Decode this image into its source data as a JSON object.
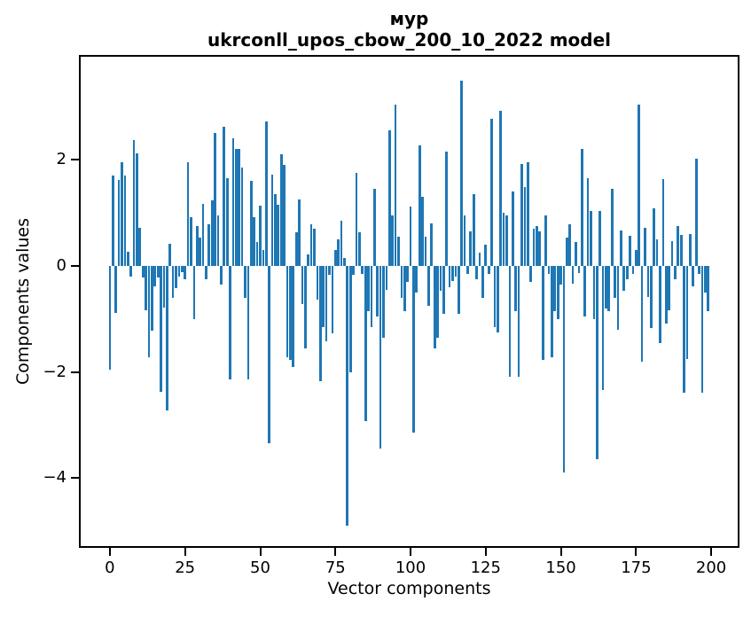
{
  "header": {
    "title_line1": "мур",
    "title_line2": "ukrconll_upos_cbow_200_10_2022 model"
  },
  "axes": {
    "xlabel": "Vector components",
    "ylabel": "Components values"
  },
  "chart_data": {
    "type": "bar",
    "title": "мур",
    "subtitle": "ukrconll_upos_cbow_200_10_2022 model",
    "xlabel": "Vector components",
    "ylabel": "Components values",
    "bar_color": "#1f77b4",
    "grid": false,
    "legend": null,
    "x_ticks": [
      0,
      25,
      50,
      75,
      100,
      125,
      150,
      175,
      200
    ],
    "y_ticks": [
      2,
      0,
      -2,
      -4
    ],
    "xlim": [
      -10.3,
      209.4
    ],
    "ylim": [
      -5.32,
      3.98
    ],
    "bar_data_width": 0.8,
    "n_bars": 200,
    "values": [
      -1.95,
      1.7,
      -0.88,
      1.62,
      1.95,
      1.7,
      0.26,
      -0.2,
      2.37,
      2.13,
      0.72,
      -0.22,
      -0.84,
      -1.73,
      -1.23,
      -0.39,
      -0.22,
      -2.37,
      -0.78,
      -2.73,
      0.42,
      -0.61,
      -0.42,
      -0.2,
      -0.11,
      -0.25,
      1.95,
      0.92,
      -1.0,
      0.75,
      0.53,
      1.17,
      -0.25,
      0.78,
      1.23,
      2.51,
      0.95,
      -0.35,
      2.62,
      1.65,
      -2.15,
      2.4,
      2.2,
      2.2,
      1.85,
      -0.6,
      -2.15,
      1.6,
      0.92,
      0.45,
      1.13,
      0.3,
      2.72,
      -3.35,
      1.72,
      1.35,
      1.15,
      2.1,
      1.9,
      -1.73,
      -1.78,
      -1.9,
      0.64,
      1.25,
      -0.72,
      -1.55,
      0.21,
      0.78,
      0.7,
      -0.64,
      -2.17,
      -1.15,
      -1.42,
      -0.17,
      -1.28,
      0.3,
      0.5,
      0.85,
      0.15,
      -4.9,
      -2.0,
      -0.17,
      1.75,
      0.63,
      -0.15,
      -2.93,
      -0.85,
      -1.15,
      1.45,
      -0.95,
      -3.45,
      -1.35,
      -0.45,
      2.55,
      0.95,
      3.05,
      0.55,
      -0.6,
      -0.85,
      -0.3,
      1.12,
      -3.15,
      -0.5,
      2.27,
      1.3,
      0.55,
      -0.75,
      0.8,
      -1.55,
      -1.35,
      -0.47,
      -0.9,
      2.15,
      -0.4,
      -0.28,
      -0.2,
      -0.9,
      3.5,
      0.95,
      -0.15,
      0.65,
      1.35,
      -0.25,
      0.25,
      -0.6,
      0.4,
      -0.15,
      2.78,
      -1.15,
      -1.25,
      2.93,
      1.0,
      0.96,
      -2.1,
      1.4,
      -0.85,
      -2.1,
      1.92,
      1.48,
      1.95,
      -0.3,
      0.7,
      0.75,
      0.65,
      -1.78,
      0.95,
      -0.15,
      -1.73,
      -0.85,
      -1.0,
      -0.35,
      -3.9,
      0.53,
      0.78,
      -0.33,
      0.45,
      -0.14,
      2.2,
      -0.95,
      1.65,
      1.03,
      -1.0,
      -3.65,
      1.03,
      -2.35,
      -0.8,
      -0.85,
      1.45,
      -0.61,
      -1.2,
      0.67,
      -0.47,
      -0.25,
      0.56,
      -0.15,
      0.3,
      3.05,
      -1.8,
      0.72,
      -0.59,
      -1.17,
      1.09,
      0.5,
      -1.45,
      1.64,
      -1.09,
      -0.84,
      0.47,
      -0.25,
      0.75,
      0.59,
      -2.4,
      -1.75,
      0.6,
      -0.39,
      2.02,
      -0.15,
      -2.4,
      -0.5,
      -0.85
    ]
  }
}
